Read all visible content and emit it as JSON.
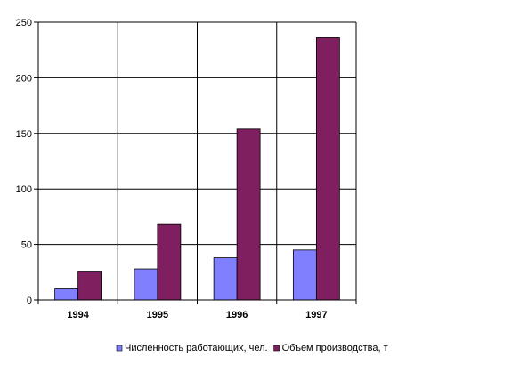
{
  "chart_data": {
    "type": "bar",
    "categories": [
      "1994",
      "1995",
      "1996",
      "1997"
    ],
    "series": [
      {
        "name": "Численность работающих, чел.",
        "color": "#8080ff",
        "values": [
          10,
          28,
          38,
          45
        ]
      },
      {
        "name": "Объем производства, т",
        "color": "#7f1f5f",
        "values": [
          26,
          68,
          154,
          236
        ]
      }
    ],
    "ylim": [
      0,
      250
    ],
    "yticks": [
      0,
      50,
      100,
      150,
      200,
      250
    ],
    "grid": true,
    "legend": "bottom"
  }
}
